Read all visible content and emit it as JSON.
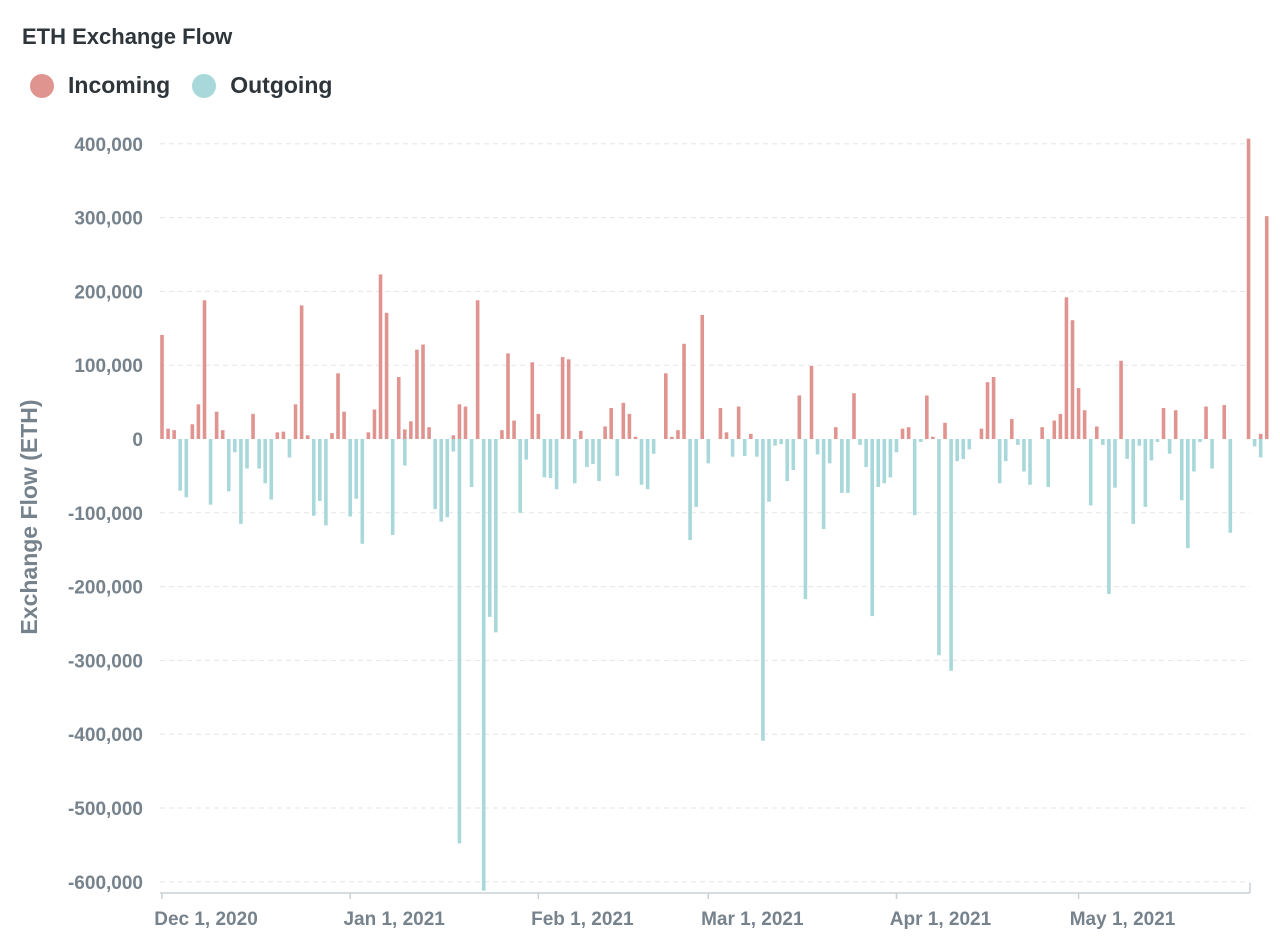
{
  "chart_data": {
    "type": "bar",
    "title": "ETH Exchange Flow",
    "xlabel": "",
    "ylabel": "Exchange Flow (ETH)",
    "ylim": [
      -615000,
      415000
    ],
    "yticks": [
      400000,
      300000,
      200000,
      100000,
      0,
      -100000,
      -200000,
      -300000,
      -400000,
      -500000,
      -600000
    ],
    "ytick_labels": [
      "400,000",
      "300,000",
      "200,000",
      "100,000",
      "0",
      "-100,000",
      "-200,000",
      "-300,000",
      "-400,000",
      "-500,000",
      "-600,000"
    ],
    "x_range": [
      "2020-12-01",
      "2021-05-29"
    ],
    "xticks": [
      "2020-12-01",
      "2021-01-01",
      "2021-02-01",
      "2021-03-01",
      "2021-04-01",
      "2021-05-01"
    ],
    "xtick_labels": [
      "Dec 1, 2020",
      "Jan 1, 2021",
      "Feb 1, 2021",
      "Mar 1, 2021",
      "Apr 1, 2021",
      "May 1, 2021"
    ],
    "grid": true,
    "legend_position": "top-left",
    "series": [
      {
        "name": "Incoming",
        "color": "#e09490",
        "values": [
          {
            "x": "2020-12-01",
            "y": 141000
          },
          {
            "x": "2020-12-02",
            "y": 14000
          },
          {
            "x": "2020-12-03",
            "y": 12000
          },
          {
            "x": "2020-12-06",
            "y": 20000
          },
          {
            "x": "2020-12-07",
            "y": 47000
          },
          {
            "x": "2020-12-08",
            "y": 188000
          },
          {
            "x": "2020-12-10",
            "y": 37000
          },
          {
            "x": "2020-12-11",
            "y": 12000
          },
          {
            "x": "2020-12-16",
            "y": 34000
          },
          {
            "x": "2020-12-20",
            "y": 9000
          },
          {
            "x": "2020-12-21",
            "y": 10000
          },
          {
            "x": "2020-12-23",
            "y": 47000
          },
          {
            "x": "2020-12-24",
            "y": 181000
          },
          {
            "x": "2020-12-25",
            "y": 5000
          },
          {
            "x": "2020-12-29",
            "y": 8000
          },
          {
            "x": "2020-12-30",
            "y": 89000
          },
          {
            "x": "2020-12-31",
            "y": 37000
          },
          {
            "x": "2021-01-04",
            "y": 9000
          },
          {
            "x": "2021-01-05",
            "y": 40000
          },
          {
            "x": "2021-01-06",
            "y": 223000
          },
          {
            "x": "2021-01-07",
            "y": 171000
          },
          {
            "x": "2021-01-09",
            "y": 84000
          },
          {
            "x": "2021-01-10",
            "y": 13000
          },
          {
            "x": "2021-01-11",
            "y": 24000
          },
          {
            "x": "2021-01-12",
            "y": 121000
          },
          {
            "x": "2021-01-13",
            "y": 128000
          },
          {
            "x": "2021-01-14",
            "y": 16000
          },
          {
            "x": "2021-01-18",
            "y": 5000
          },
          {
            "x": "2021-01-19",
            "y": 47000
          },
          {
            "x": "2021-01-20",
            "y": 44000
          },
          {
            "x": "2021-01-22",
            "y": 188000
          },
          {
            "x": "2021-01-26",
            "y": 12000
          },
          {
            "x": "2021-01-27",
            "y": 116000
          },
          {
            "x": "2021-01-28",
            "y": 25000
          },
          {
            "x": "2021-01-31",
            "y": 104000
          },
          {
            "x": "2021-02-01",
            "y": 34000
          },
          {
            "x": "2021-02-05",
            "y": 111000
          },
          {
            "x": "2021-02-06",
            "y": 108000
          },
          {
            "x": "2021-02-08",
            "y": 11000
          },
          {
            "x": "2021-02-12",
            "y": 17000
          },
          {
            "x": "2021-02-13",
            "y": 42000
          },
          {
            "x": "2021-02-15",
            "y": 49000
          },
          {
            "x": "2021-02-16",
            "y": 34000
          },
          {
            "x": "2021-02-17",
            "y": 3000
          },
          {
            "x": "2021-02-22",
            "y": 89000
          },
          {
            "x": "2021-02-23",
            "y": 3000
          },
          {
            "x": "2021-02-24",
            "y": 12000
          },
          {
            "x": "2021-02-25",
            "y": 129000
          },
          {
            "x": "2021-02-28",
            "y": 168000
          },
          {
            "x": "2021-03-03",
            "y": 42000
          },
          {
            "x": "2021-03-04",
            "y": 9000
          },
          {
            "x": "2021-03-06",
            "y": 44000
          },
          {
            "x": "2021-03-08",
            "y": 7000
          },
          {
            "x": "2021-03-16",
            "y": 59000
          },
          {
            "x": "2021-03-18",
            "y": 99000
          },
          {
            "x": "2021-03-22",
            "y": 16000
          },
          {
            "x": "2021-03-25",
            "y": 62000
          },
          {
            "x": "2021-04-02",
            "y": 14000
          },
          {
            "x": "2021-04-03",
            "y": 16000
          },
          {
            "x": "2021-04-06",
            "y": 59000
          },
          {
            "x": "2021-04-07",
            "y": 3000
          },
          {
            "x": "2021-04-09",
            "y": 22000
          },
          {
            "x": "2021-04-15",
            "y": 14000
          },
          {
            "x": "2021-04-16",
            "y": 77000
          },
          {
            "x": "2021-04-17",
            "y": 84000
          },
          {
            "x": "2021-04-20",
            "y": 27000
          },
          {
            "x": "2021-04-25",
            "y": 16000
          },
          {
            "x": "2021-04-27",
            "y": 25000
          },
          {
            "x": "2021-04-28",
            "y": 34000
          },
          {
            "x": "2021-04-29",
            "y": 192000
          },
          {
            "x": "2021-04-30",
            "y": 161000
          },
          {
            "x": "2021-05-01",
            "y": 69000
          },
          {
            "x": "2021-05-02",
            "y": 39000
          },
          {
            "x": "2021-05-04",
            "y": 17000
          },
          {
            "x": "2021-05-08",
            "y": 106000
          },
          {
            "x": "2021-05-15",
            "y": 42000
          },
          {
            "x": "2021-05-17",
            "y": 39000
          },
          {
            "x": "2021-05-22",
            "y": 44000
          },
          {
            "x": "2021-05-25",
            "y": 46000
          },
          {
            "x": "2021-05-29",
            "y": 407000
          },
          {
            "x": "2021-05-31",
            "y": 7000
          },
          {
            "x": "2021-06-01",
            "y": 302000
          }
        ]
      },
      {
        "name": "Outgoing",
        "color": "#a8d8d9",
        "values": [
          {
            "x": "2020-12-04",
            "y": -70000
          },
          {
            "x": "2020-12-05",
            "y": -79000
          },
          {
            "x": "2020-12-09",
            "y": -89000
          },
          {
            "x": "2020-12-12",
            "y": -71000
          },
          {
            "x": "2020-12-13",
            "y": -18000
          },
          {
            "x": "2020-12-14",
            "y": -115000
          },
          {
            "x": "2020-12-15",
            "y": -40000
          },
          {
            "x": "2020-12-17",
            "y": -40000
          },
          {
            "x": "2020-12-18",
            "y": -60000
          },
          {
            "x": "2020-12-19",
            "y": -82000
          },
          {
            "x": "2020-12-22",
            "y": -25000
          },
          {
            "x": "2020-12-26",
            "y": -104000
          },
          {
            "x": "2020-12-27",
            "y": -84000
          },
          {
            "x": "2020-12-28",
            "y": -117000
          },
          {
            "x": "2021-01-01",
            "y": -105000
          },
          {
            "x": "2021-01-02",
            "y": -81000
          },
          {
            "x": "2021-01-03",
            "y": -142000
          },
          {
            "x": "2021-01-08",
            "y": -130000
          },
          {
            "x": "2021-01-10",
            "y": -36000
          },
          {
            "x": "2021-01-15",
            "y": -95000
          },
          {
            "x": "2021-01-16",
            "y": -112000
          },
          {
            "x": "2021-01-17",
            "y": -106000
          },
          {
            "x": "2021-01-18",
            "y": -17000
          },
          {
            "x": "2021-01-19",
            "y": -548000
          },
          {
            "x": "2021-01-21",
            "y": -65000
          },
          {
            "x": "2021-01-23",
            "y": -612000
          },
          {
            "x": "2021-01-24",
            "y": -241000
          },
          {
            "x": "2021-01-25",
            "y": -262000
          },
          {
            "x": "2021-01-29",
            "y": -100000
          },
          {
            "x": "2021-01-30",
            "y": -28000
          },
          {
            "x": "2021-02-02",
            "y": -52000
          },
          {
            "x": "2021-02-03",
            "y": -53000
          },
          {
            "x": "2021-02-04",
            "y": -68000
          },
          {
            "x": "2021-02-07",
            "y": -60000
          },
          {
            "x": "2021-02-09",
            "y": -38000
          },
          {
            "x": "2021-02-10",
            "y": -34000
          },
          {
            "x": "2021-02-11",
            "y": -57000
          },
          {
            "x": "2021-02-14",
            "y": -50000
          },
          {
            "x": "2021-02-18",
            "y": -62000
          },
          {
            "x": "2021-02-19",
            "y": -68000
          },
          {
            "x": "2021-02-20",
            "y": -20000
          },
          {
            "x": "2021-02-26",
            "y": -137000
          },
          {
            "x": "2021-02-27",
            "y": -92000
          },
          {
            "x": "2021-03-01",
            "y": -33000
          },
          {
            "x": "2021-03-05",
            "y": -24000
          },
          {
            "x": "2021-03-07",
            "y": -23000
          },
          {
            "x": "2021-03-09",
            "y": -24000
          },
          {
            "x": "2021-03-10",
            "y": -409000
          },
          {
            "x": "2021-03-11",
            "y": -85000
          },
          {
            "x": "2021-03-12",
            "y": -9000
          },
          {
            "x": "2021-03-13",
            "y": -7000
          },
          {
            "x": "2021-03-14",
            "y": -57000
          },
          {
            "x": "2021-03-15",
            "y": -42000
          },
          {
            "x": "2021-03-17",
            "y": -217000
          },
          {
            "x": "2021-03-19",
            "y": -21000
          },
          {
            "x": "2021-03-20",
            "y": -122000
          },
          {
            "x": "2021-03-21",
            "y": -33000
          },
          {
            "x": "2021-03-23",
            "y": -73000
          },
          {
            "x": "2021-03-24",
            "y": -73000
          },
          {
            "x": "2021-03-26",
            "y": -8000
          },
          {
            "x": "2021-03-27",
            "y": -38000
          },
          {
            "x": "2021-03-28",
            "y": -240000
          },
          {
            "x": "2021-03-29",
            "y": -65000
          },
          {
            "x": "2021-03-30",
            "y": -60000
          },
          {
            "x": "2021-03-31",
            "y": -52000
          },
          {
            "x": "2021-04-01",
            "y": -18000
          },
          {
            "x": "2021-04-04",
            "y": -103000
          },
          {
            "x": "2021-04-05",
            "y": -4000
          },
          {
            "x": "2021-04-08",
            "y": -293000
          },
          {
            "x": "2021-04-10",
            "y": -314000
          },
          {
            "x": "2021-04-11",
            "y": -30000
          },
          {
            "x": "2021-04-12",
            "y": -27000
          },
          {
            "x": "2021-04-13",
            "y": -14000
          },
          {
            "x": "2021-04-18",
            "y": -60000
          },
          {
            "x": "2021-04-19",
            "y": -30000
          },
          {
            "x": "2021-04-21",
            "y": -8000
          },
          {
            "x": "2021-04-22",
            "y": -44000
          },
          {
            "x": "2021-04-23",
            "y": -62000
          },
          {
            "x": "2021-04-26",
            "y": -65000
          },
          {
            "x": "2021-05-03",
            "y": -90000
          },
          {
            "x": "2021-05-05",
            "y": -8000
          },
          {
            "x": "2021-05-06",
            "y": -210000
          },
          {
            "x": "2021-05-07",
            "y": -66000
          },
          {
            "x": "2021-05-09",
            "y": -27000
          },
          {
            "x": "2021-05-10",
            "y": -115000
          },
          {
            "x": "2021-05-11",
            "y": -9000
          },
          {
            "x": "2021-05-12",
            "y": -92000
          },
          {
            "x": "2021-05-13",
            "y": -29000
          },
          {
            "x": "2021-05-14",
            "y": -4000
          },
          {
            "x": "2021-05-16",
            "y": -20000
          },
          {
            "x": "2021-05-18",
            "y": -83000
          },
          {
            "x": "2021-05-19",
            "y": -148000
          },
          {
            "x": "2021-05-20",
            "y": -44000
          },
          {
            "x": "2021-05-21",
            "y": -4000
          },
          {
            "x": "2021-05-23",
            "y": -40000
          },
          {
            "x": "2021-05-26",
            "y": -127000
          },
          {
            "x": "2021-05-30",
            "y": -10000
          },
          {
            "x": "2021-05-31",
            "y": -25000
          }
        ]
      }
    ]
  }
}
